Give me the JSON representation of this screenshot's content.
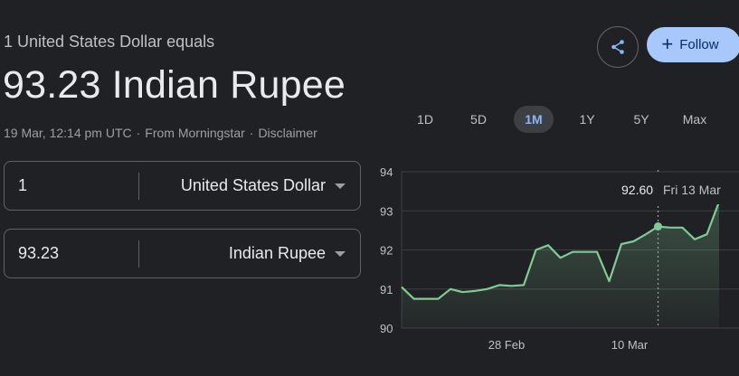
{
  "header": {
    "equals_text": "1 United States Dollar equals",
    "converted_value": "93.23 Indian Rupee",
    "timestamp": "19 Mar, 12:14 pm UTC",
    "source": "From Morningstar",
    "disclaimer": "Disclaimer"
  },
  "converter": {
    "from_amount": "1",
    "from_currency": "United States Dollar",
    "to_amount": "93.23",
    "to_currency": "Indian Rupee"
  },
  "actions": {
    "share_icon": "share-icon",
    "follow_label": "Follow",
    "follow_icon": "plus-icon"
  },
  "ranges": {
    "items": [
      "1D",
      "5D",
      "1M",
      "1Y",
      "5Y",
      "Max"
    ],
    "selected": "1M"
  },
  "tooltip": {
    "value": "92.60",
    "date": "Fri 13 Mar"
  },
  "colors": {
    "line": "#81c995",
    "accent": "#8ab4f8",
    "follow_bg": "#a8c7fa"
  },
  "chart_data": {
    "type": "area",
    "ylim": [
      90,
      94
    ],
    "yticks": [
      90,
      91,
      92,
      93,
      94
    ],
    "xtick_labels": [
      "28 Feb",
      "10 Mar"
    ],
    "values": [
      91.05,
      90.75,
      90.75,
      90.75,
      91.0,
      90.92,
      90.95,
      91.0,
      91.1,
      91.08,
      91.1,
      92.0,
      92.12,
      91.8,
      91.95,
      91.95,
      91.95,
      91.2,
      92.15,
      92.22,
      92.4,
      92.6,
      92.57,
      92.57,
      92.27,
      92.4,
      93.23
    ],
    "highlight_value": 92.6
  }
}
